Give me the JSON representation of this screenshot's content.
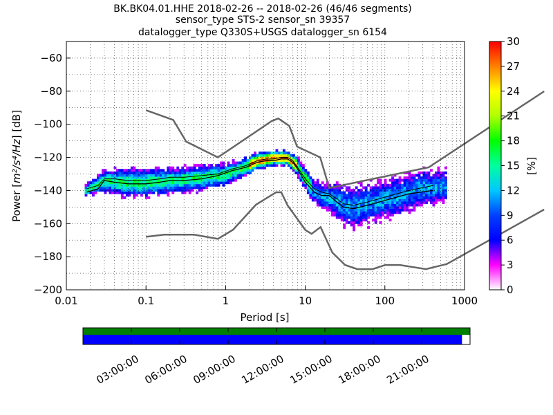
{
  "title": {
    "line1": "BK.BK04.01.HHE   2018-02-26 -- 2018-02-26  (46/46 segments)",
    "line2": "sensor_type STS-2 sensor_sn 39357",
    "line3": "datalogger_type Q330S+USGS datalogger_sn 6154"
  },
  "chart_data": [
    {
      "type": "heatmap",
      "xlabel": "Period [s]",
      "ylabel": "Power [m²/s⁴/Hz] [dB]",
      "x_scale": "log",
      "xlim": [
        0.01,
        1000
      ],
      "ylim": [
        -200,
        -50
      ],
      "x_ticks": [
        0.01,
        0.1,
        1,
        10,
        100,
        1000
      ],
      "x_tick_labels": [
        "0.01",
        "0.1",
        "1",
        "10",
        "100",
        "1000"
      ],
      "y_ticks": [
        -200,
        -180,
        -160,
        -140,
        -120,
        -100,
        -80,
        -60
      ],
      "y_tick_labels": [
        "−200",
        "−180",
        "−160",
        "−140",
        "−120",
        "−100",
        "−80",
        "−60"
      ],
      "grid": true,
      "colorbar": {
        "label": "[%]",
        "ticks": [
          0,
          3,
          6,
          9,
          12,
          15,
          18,
          21,
          24,
          27,
          30
        ],
        "tick_labels": [
          "0",
          "3",
          "6",
          "9",
          "12",
          "15",
          "18",
          "21",
          "24",
          "27",
          "30"
        ],
        "range": [
          0,
          30
        ],
        "colormap": "pqlx"
      },
      "noise_models": {
        "high": {
          "period": [
            0.1,
            0.22,
            0.32,
            0.8,
            3.8,
            4.6,
            6.3,
            7.9,
            15.4,
            20,
            354.8,
            10000
          ],
          "power": [
            -91.5,
            -97.4,
            -110.5,
            -120,
            -98,
            -96.5,
            -101,
            -113.5,
            -120,
            -138.5,
            -126,
            -80.1
          ]
        },
        "low": {
          "period": [
            0.1,
            0.17,
            0.4,
            0.8,
            1.24,
            2.4,
            4.3,
            5,
            6,
            10,
            12,
            15.6,
            21.9,
            31.6,
            45,
            70,
            101,
            154,
            328,
            600,
            10000
          ],
          "power": [
            -168,
            -166.7,
            -166.7,
            -169.2,
            -163.7,
            -148.6,
            -141.1,
            -141.1,
            -149,
            -163.8,
            -166.2,
            -162.1,
            -177.5,
            -185,
            -187.5,
            -187.5,
            -185,
            -185,
            -187.5,
            -184.4,
            -151.5
          ]
        }
      },
      "mode_line": {
        "period": [
          0.018,
          0.025,
          0.03,
          0.04,
          0.06,
          0.1,
          0.15,
          0.2,
          0.3,
          0.5,
          0.8,
          1.2,
          1.8,
          2.5,
          3.2,
          4,
          5,
          6,
          7,
          8,
          10,
          13,
          16,
          20,
          25,
          30,
          40,
          60,
          100,
          200,
          400
        ],
        "power": [
          -141,
          -139,
          -134,
          -135,
          -136,
          -136,
          -135,
          -134,
          -134,
          -133,
          -131,
          -128,
          -126,
          -123,
          -122,
          -122,
          -121,
          -121,
          -123,
          -127,
          -135,
          -141,
          -143,
          -143,
          -147,
          -150,
          -151,
          -149,
          -146,
          -142,
          -140
        ]
      },
      "mean_line": {
        "period": [
          0.018,
          0.025,
          0.03,
          0.04,
          0.06,
          0.1,
          0.15,
          0.2,
          0.3,
          0.5,
          0.8,
          1.2,
          1.8,
          2.5,
          3.2,
          4,
          5,
          6,
          7,
          8,
          10,
          13,
          16,
          20,
          25,
          30,
          40,
          60,
          100,
          200,
          400
        ],
        "power": [
          -139,
          -137,
          -133,
          -133,
          -134,
          -134,
          -133,
          -132,
          -132,
          -131,
          -130,
          -127,
          -125,
          -122,
          -121,
          -121,
          -120,
          -120,
          -122,
          -126,
          -133,
          -139,
          -141,
          -142,
          -145,
          -148,
          -149,
          -147,
          -144,
          -140,
          -137
        ]
      },
      "density_shape": {
        "period_range": [
          0.017,
          600
        ],
        "center": {
          "period": [
            0.017,
            0.03,
            0.06,
            0.1,
            0.2,
            0.5,
            1,
            1.5,
            2.5,
            4,
            6,
            8,
            10,
            12,
            15,
            20,
            30,
            40,
            70,
            150,
            300,
            600
          ],
          "power": [
            -141,
            -135,
            -136,
            -136,
            -135,
            -133,
            -131,
            -128,
            -123,
            -121,
            -121,
            -126,
            -133,
            -140,
            -143,
            -145,
            -149,
            -151,
            -148,
            -144,
            -139,
            -138
          ]
        },
        "halfwidth": {
          "period": [
            0.017,
            0.03,
            0.06,
            0.1,
            0.2,
            0.5,
            1,
            2,
            4,
            6,
            8,
            10,
            15,
            20,
            30,
            50,
            100,
            300,
            600
          ],
          "power": [
            3,
            6,
            8,
            8,
            7,
            7,
            6,
            5,
            4,
            4,
            5,
            6,
            7,
            9,
            11,
            12,
            11,
            10,
            9
          ]
        }
      }
    },
    {
      "type": "timeline",
      "x_tick_labels": [
        "03:00:00",
        "06:00:00",
        "09:00:00",
        "12:00:00",
        "15:00:00",
        "18:00:00",
        "21:00:00"
      ],
      "x_ticks_hours": [
        3,
        6,
        9,
        12,
        15,
        18,
        21
      ],
      "xlim_hours": [
        0,
        24
      ],
      "bars": [
        {
          "color": "#008000",
          "start_hours": 0,
          "end_hours": 24
        },
        {
          "color": "#0000ff",
          "start_hours": 0,
          "end_hours": 23.5
        }
      ]
    }
  ]
}
